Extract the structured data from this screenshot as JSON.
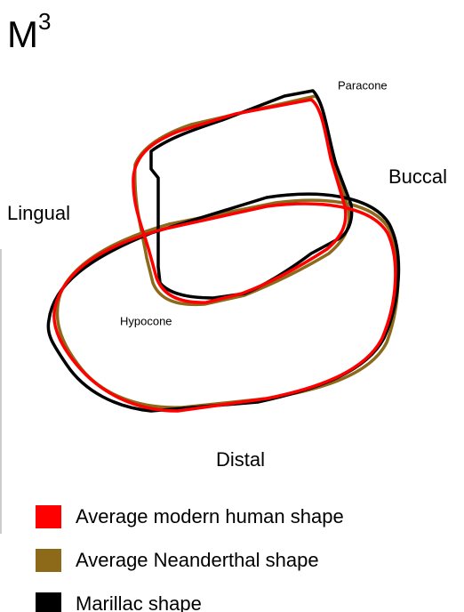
{
  "title": {
    "text": "M",
    "superscript": "3"
  },
  "labels": {
    "paracone": "Paracone",
    "buccal": "Buccal",
    "lingual": "Lingual",
    "hypocone": "Hypocone",
    "distal": "Distal"
  },
  "legend": [
    {
      "name": "Average modern human shape",
      "color": "#ff0000"
    },
    {
      "name": "Average Neanderthal shape",
      "color": "#8c6a1a"
    },
    {
      "name": "Marillac shape",
      "color": "#000000"
    }
  ]
}
